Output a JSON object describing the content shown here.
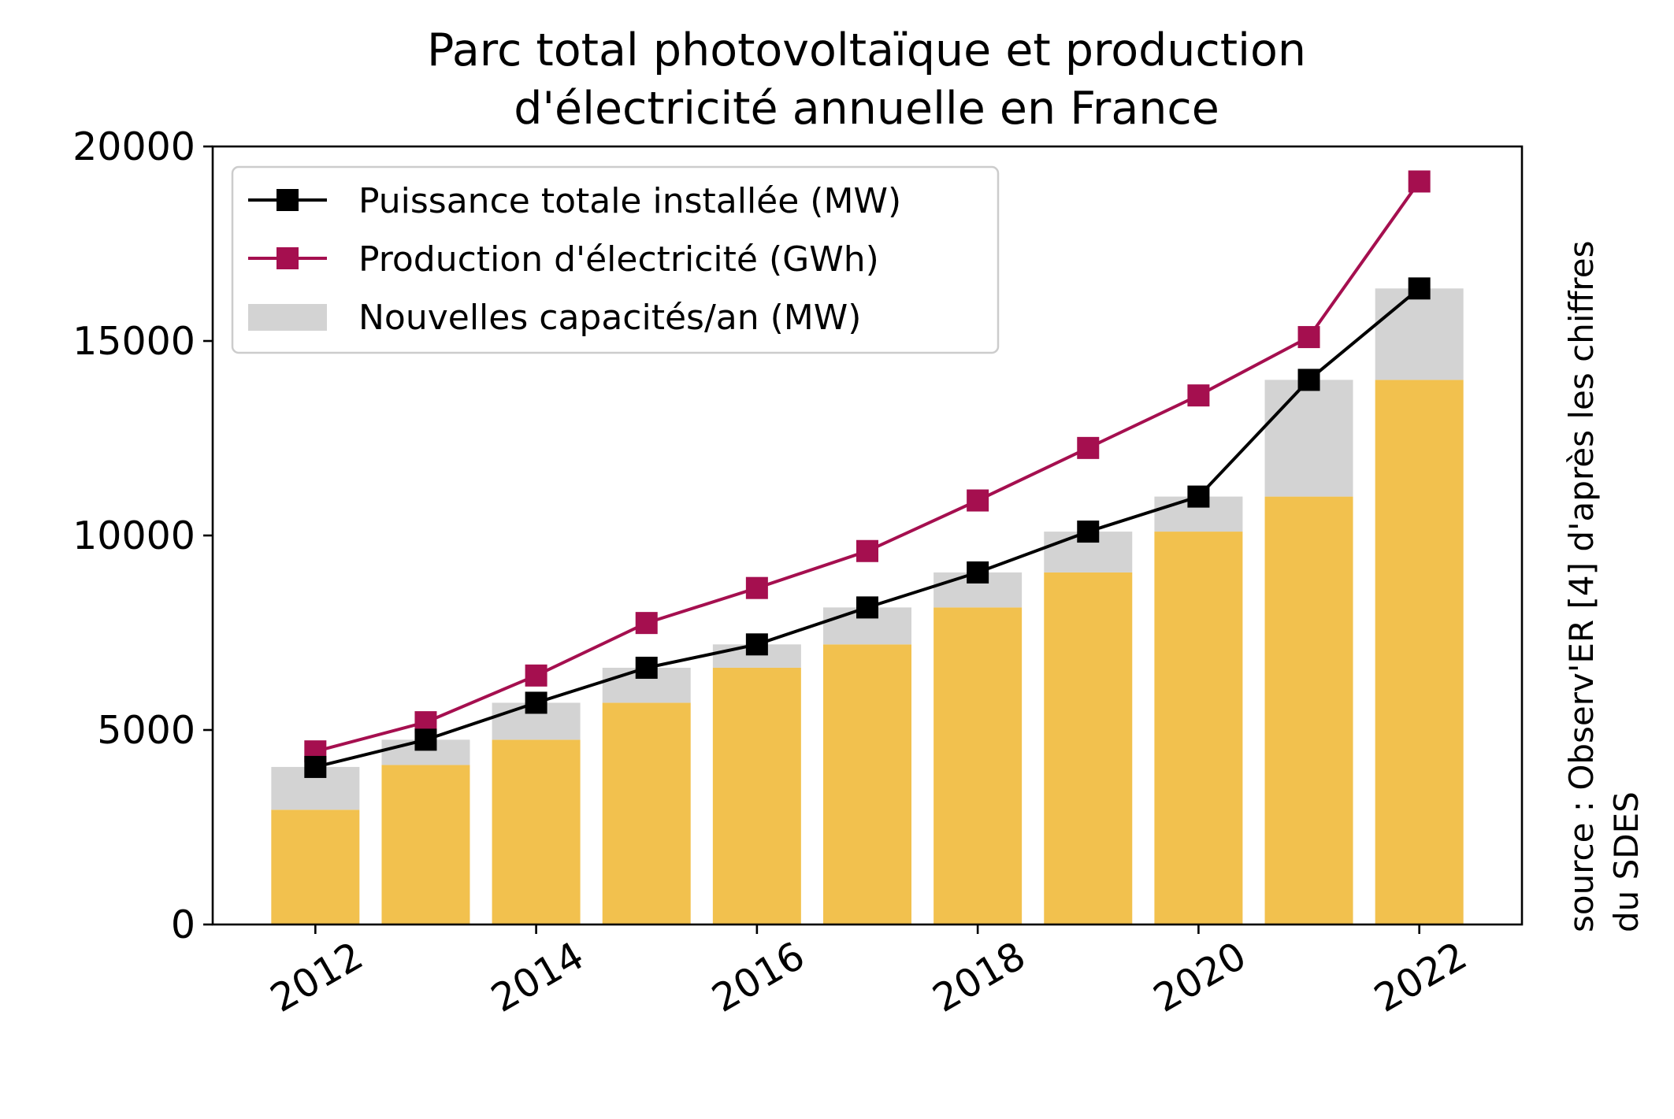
{
  "chart_data": {
    "type": "bar",
    "title_lines": [
      "Parc total photovoltaïque et production",
      "d'électricité annuelle en France"
    ],
    "source_lines": [
      "source : Observ'ER [4] d'après les chiffres",
      "du SDES"
    ],
    "x": [
      2012,
      2013,
      2014,
      2015,
      2016,
      2017,
      2018,
      2019,
      2020,
      2021,
      2022
    ],
    "x_ticks": [
      2012,
      2014,
      2016,
      2018,
      2020,
      2022
    ],
    "x_tick_labels": [
      "2012",
      "2014",
      "2016",
      "2018",
      "2020",
      "2022"
    ],
    "xlim": [
      2011.07,
      2022.93
    ],
    "y_ticks": [
      0,
      5000,
      10000,
      15000,
      20000
    ],
    "y_tick_labels": [
      "0",
      "5000",
      "10000",
      "15000",
      "20000"
    ],
    "ylim": [
      0,
      20000
    ],
    "grid": false,
    "legend_position": "upper-left",
    "series": [
      {
        "name": "Puissance totale installée (MW)",
        "kind": "line",
        "color": "#000000",
        "values": [
          4050,
          4750,
          5700,
          6600,
          7200,
          8150,
          9050,
          10100,
          11000,
          14000,
          16350
        ]
      },
      {
        "name": "Production d'électricité (GWh)",
        "kind": "line",
        "color": "#a50f4f",
        "values": [
          4450,
          5200,
          6400,
          7750,
          8650,
          9600,
          10900,
          12250,
          13600,
          15100,
          19100
        ]
      },
      {
        "name": "Nouvelles capacités/an (MW)",
        "kind": "bar",
        "color": "#d3d3d3",
        "values": [
          1100,
          650,
          950,
          900,
          600,
          950,
          900,
          1050,
          900,
          3000,
          2350
        ]
      }
    ],
    "base_bars": {
      "color": "#f2c14e",
      "values": [
        2950,
        4100,
        4750,
        5700,
        6600,
        7200,
        8150,
        9050,
        10100,
        11000,
        14000
      ]
    }
  }
}
